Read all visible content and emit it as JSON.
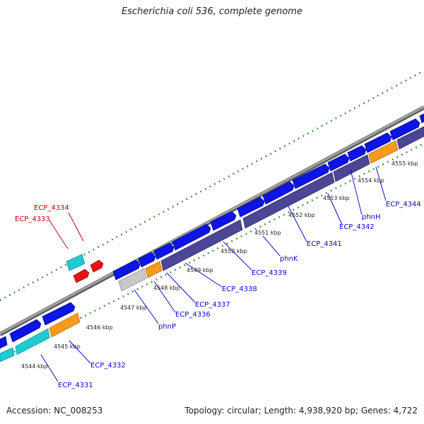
{
  "title": "Escherichia coli 536, complete genome",
  "footer": {
    "accession": "Accession: NC_008253",
    "topology": "Topology: circular; Length: 4,938,920 bp; Genes: 4,722"
  },
  "colors": {
    "backbone": "#8c8c8c",
    "forward_gene": "#0f14e6",
    "reverse_gene": "#4b4696",
    "orange_gene": "#f59a1c",
    "cyan_gene": "#1ecbd2",
    "red_gene": "#e61414",
    "grey_gene": "#c8c8c8",
    "tick_dots": "#1e7a1e",
    "label_blue": "#0a0acc",
    "label_red": "#cc0000"
  },
  "kbp_labels": [
    "4544 kbp",
    "4545 kbp",
    "4546 kbp",
    "4547 kbp",
    "4548 kbp",
    "4549 kbp",
    "4550 kbp",
    "4551 kbp",
    "4552 kbp",
    "4553 kbp",
    "4554 kbp",
    "4555 kbp"
  ],
  "gene_labels": {
    "ECP_4334": "ECP_4334",
    "ECP_4333": "ECP_4333",
    "ECP_4332": "ECP_4332",
    "ECP_4331": "ECP_4331",
    "phnP": "phnP",
    "ECP_4336": "ECP_4336",
    "ECP_4337": "ECP_4337",
    "ECP_4338": "ECP_4338",
    "ECP_4339": "ECP_4339",
    "phnK": "phnK",
    "ECP_4341": "ECP_4341",
    "ECP_4342": "ECP_4342",
    "phnH": "phnH",
    "ECP_4344": "ECP_4344"
  }
}
